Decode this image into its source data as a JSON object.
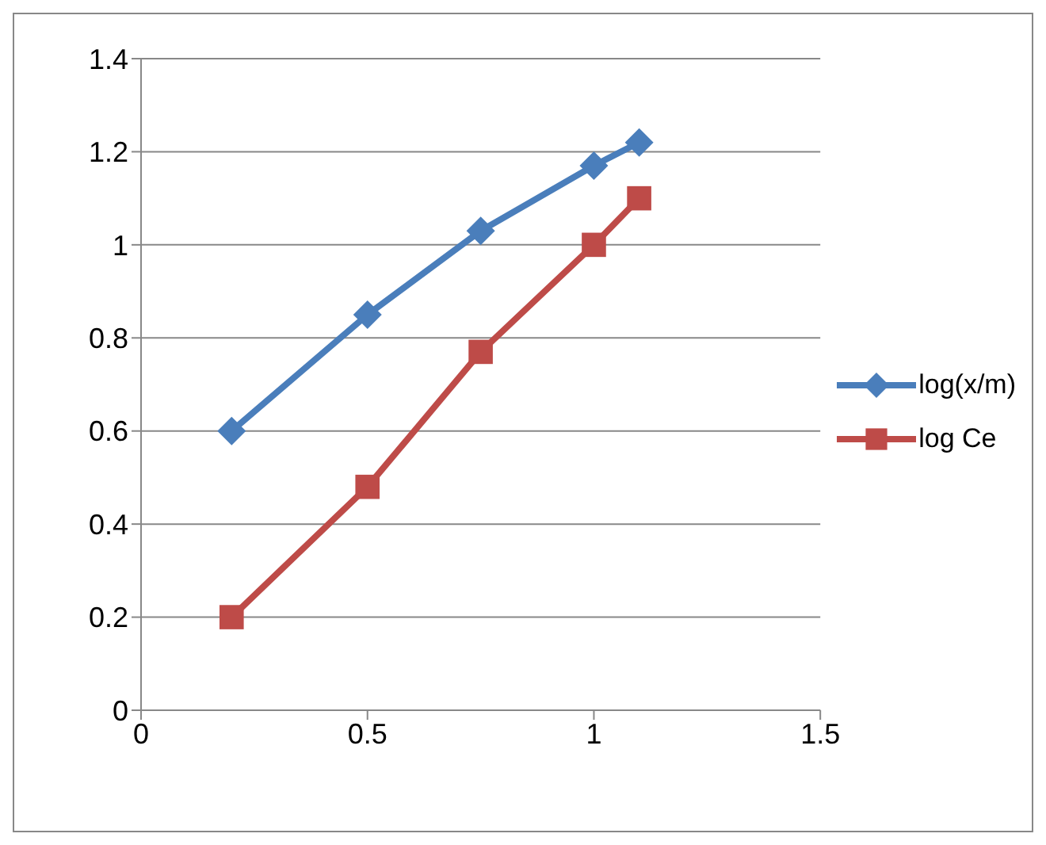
{
  "chart_data": {
    "type": "line",
    "x": [
      0.2,
      0.5,
      0.75,
      1,
      1.1
    ],
    "series": [
      {
        "name": "log(x/m)",
        "color": "#4a7ebb",
        "marker": "diamond",
        "values": [
          0.6,
          0.85,
          1.03,
          1.17,
          1.22
        ]
      },
      {
        "name": "log Ce",
        "color": "#be4b48",
        "marker": "square",
        "values": [
          0.2,
          0.48,
          0.77,
          1.0,
          1.1
        ]
      }
    ],
    "xlim": [
      0,
      1.5
    ],
    "xticks": [
      0,
      0.5,
      1,
      1.5
    ],
    "ylim": [
      0,
      1.4
    ],
    "yticks": [
      0,
      0.2,
      0.4,
      0.6,
      0.8,
      1,
      1.2,
      1.4
    ],
    "grid": "y",
    "legend": "right",
    "line_style": "solid"
  }
}
